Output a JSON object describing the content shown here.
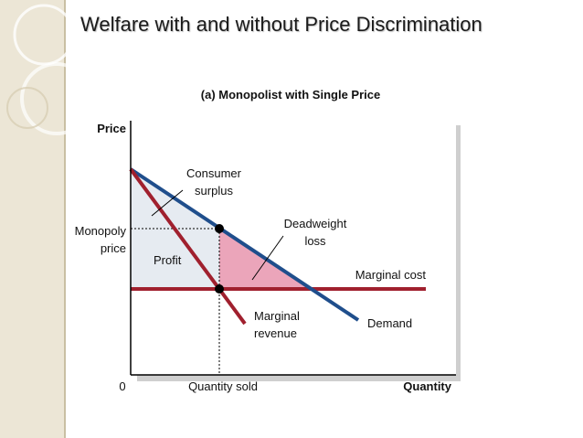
{
  "slide": {
    "title": "Welfare with and without Price Discrimination"
  },
  "diagram": {
    "panel_title": "(a) Monopolist with Single Price",
    "axis": {
      "y_label": "Price",
      "x_label": "Quantity",
      "origin_label": "0"
    },
    "labels": {
      "consumer_surplus": [
        "Consumer",
        "surplus"
      ],
      "deadweight_loss": [
        "Deadweight",
        "loss"
      ],
      "monopoly_price": [
        "Monopoly",
        "price"
      ],
      "profit": "Profit",
      "marginal_cost": "Marginal cost",
      "marginal_revenue": [
        "Marginal",
        "revenue"
      ],
      "demand": "Demand",
      "quantity_sold": "Quantity sold"
    },
    "colors": {
      "demand": "#1f4e8c",
      "marginal_revenue": "#a0202e",
      "marginal_cost": "#a0202e",
      "consumer_surplus_fill": "#b5d3f2",
      "deadweight_fill": "#eba5ba",
      "profit_fill": "#e6ebf1"
    }
  }
}
